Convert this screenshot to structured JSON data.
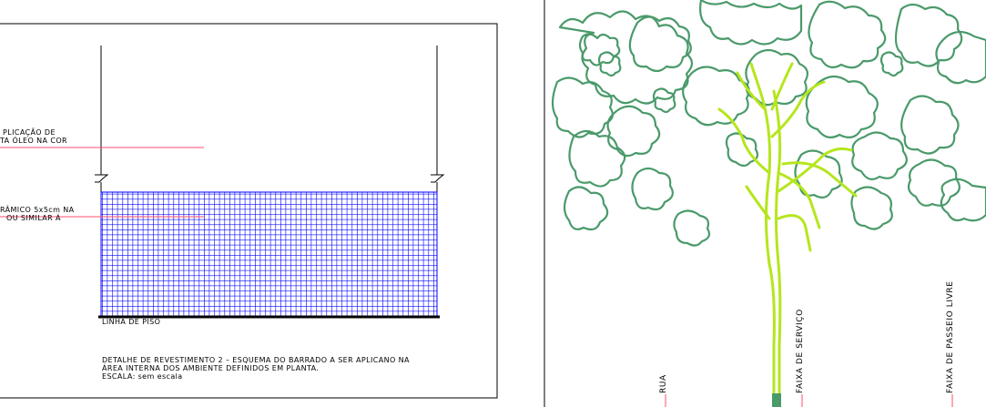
{
  "left_detail": {
    "note_paint_line1": "PLICAÇÃO DE",
    "note_paint_line2": "TA ÓLEO NA COR",
    "note_tile_line1": "RÂMICO 5x5cm NA",
    "note_tile_line2": "OU SIMILAR Á",
    "floor_line_label": "LINHA DE PISO",
    "caption_line1": "DETALHE DE REVESTIMENTO 2 – ESQUEMA DO BARRADO A SER APLICANO NA",
    "caption_line2": "ÁREA INTERNA DOS AMBIENTE DEFINIDOS EM PLANTA.",
    "caption_line3": "ESCALA: sem escala",
    "tile_color": "#0000ff",
    "leader_color": "#ff4d6d"
  },
  "right_detail": {
    "label_street": "RUA",
    "label_service_strip": "FAIXA DE SERVIÇO",
    "label_free_passage": "FAIXA DE PASSEIO LIVRE",
    "canopy_color": "#4a9a6a",
    "trunk_color": "#b5e61d"
  }
}
